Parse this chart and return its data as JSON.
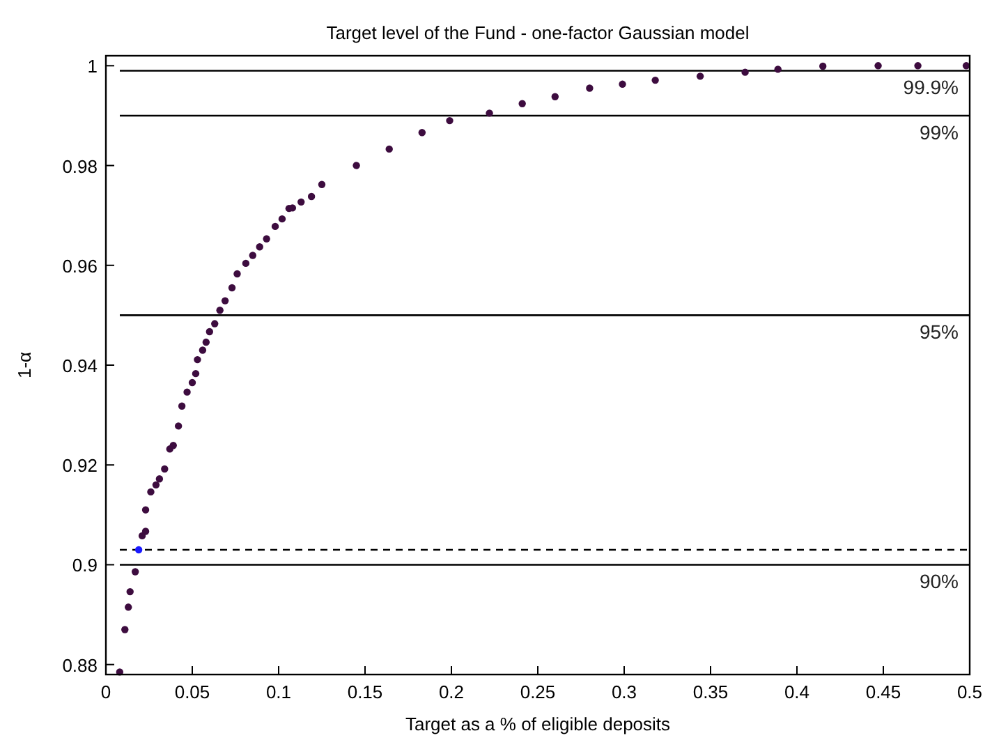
{
  "chart_data": {
    "type": "scatter",
    "title": "Target level of the Fund - one-factor Gaussian model",
    "xlabel": "Target as a % of eligible deposits",
    "ylabel": "1-α",
    "xlim": [
      0,
      0.5
    ],
    "ylim": [
      0.878,
      1.002
    ],
    "xticks": [
      0,
      0.05,
      0.1,
      0.15,
      0.2,
      0.25,
      0.3,
      0.35,
      0.4,
      0.45,
      0.5
    ],
    "yticks": [
      0.88,
      0.9,
      0.92,
      0.94,
      0.96,
      0.98,
      1
    ],
    "grid": false,
    "marker": "circle",
    "series": [
      {
        "color": "#3d0c3f",
        "x": [
          0.008,
          0.011,
          0.013,
          0.014,
          0.017,
          0.021,
          0.023,
          0.023,
          0.026,
          0.029,
          0.031,
          0.034,
          0.037,
          0.039,
          0.042,
          0.044,
          0.047,
          0.05,
          0.052,
          0.053,
          0.056,
          0.058,
          0.06,
          0.063,
          0.066,
          0.069,
          0.073,
          0.076,
          0.081,
          0.085,
          0.089,
          0.093,
          0.098,
          0.102,
          0.106,
          0.108,
          0.113,
          0.119,
          0.125,
          0.145,
          0.164,
          0.183,
          0.199,
          0.222,
          0.241,
          0.26,
          0.28,
          0.299,
          0.318,
          0.344,
          0.37,
          0.389,
          0.415,
          0.447,
          0.47,
          0.498
        ],
        "values": [
          0.8785,
          0.887,
          0.8915,
          0.8946,
          0.8986,
          0.9058,
          0.9067,
          0.911,
          0.9146,
          0.916,
          0.9172,
          0.9192,
          0.9232,
          0.9239,
          0.9278,
          0.9318,
          0.9346,
          0.9365,
          0.9383,
          0.9411,
          0.943,
          0.9446,
          0.9467,
          0.9483,
          0.951,
          0.9529,
          0.9555,
          0.9583,
          0.9604,
          0.962,
          0.9637,
          0.9653,
          0.9678,
          0.9693,
          0.9714,
          0.9715,
          0.9727,
          0.9738,
          0.9762,
          0.98,
          0.9833,
          0.9866,
          0.989,
          0.9905,
          0.9924,
          0.9938,
          0.9955,
          0.9963,
          0.9971,
          0.9979,
          0.9987,
          0.9993,
          0.9999,
          1.0,
          1.0,
          1.0
        ]
      },
      {
        "color": "#1a1aff",
        "x": [
          0.019
        ],
        "values": [
          0.903
        ]
      }
    ],
    "ref_lines": [
      {
        "axis": "y",
        "value": 0.999,
        "label": "99.9%",
        "color": "#000000",
        "line_style": "solid"
      },
      {
        "axis": "y",
        "value": 0.99,
        "label": "99%",
        "color": "#000000",
        "line_style": "solid"
      },
      {
        "axis": "y",
        "value": 0.95,
        "label": "95%",
        "color": "#000000",
        "line_style": "solid"
      },
      {
        "axis": "y",
        "value": 0.9,
        "label": "90%",
        "color": "#000000",
        "line_style": "solid"
      },
      {
        "axis": "y",
        "value": 0.903,
        "color": "#000000",
        "line_style": "dashed"
      }
    ]
  }
}
